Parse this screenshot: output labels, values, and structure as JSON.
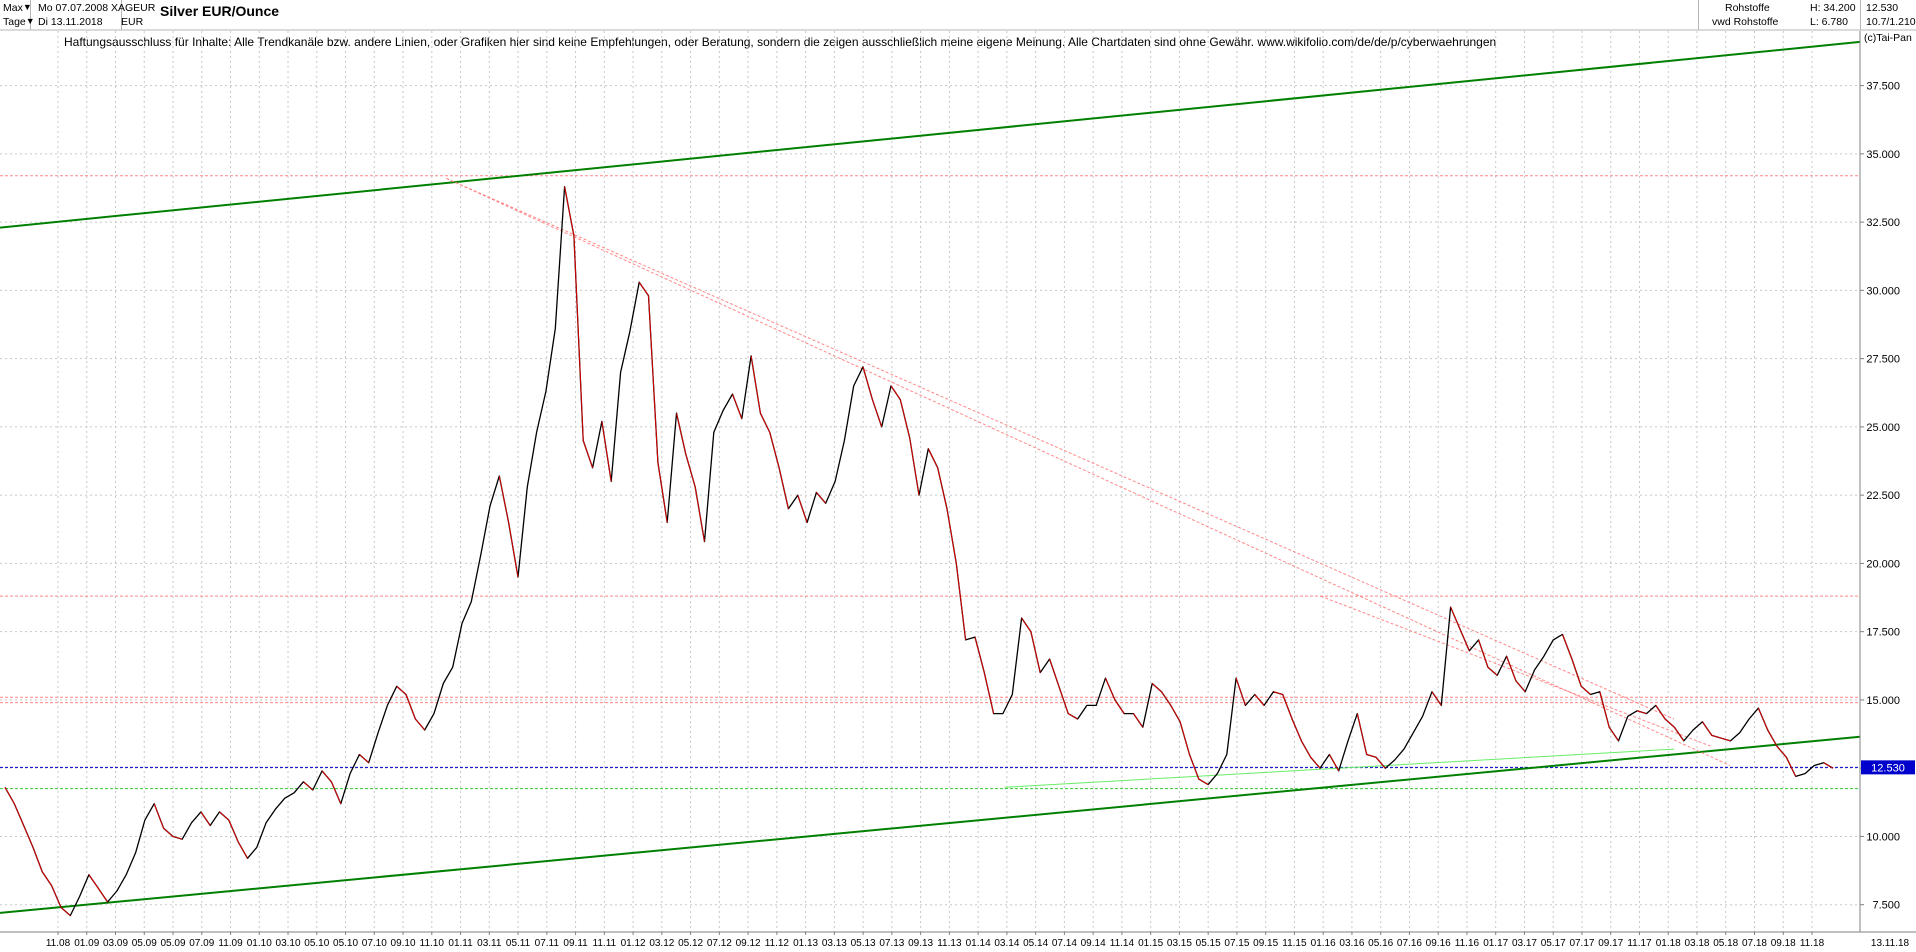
{
  "header": {
    "timeframe": "Max",
    "interval": "Tage",
    "start_date": "Mo 07.07.2008",
    "end_date": "Di 13.11.2018",
    "symbol": "XAGEUR",
    "currency": "EUR",
    "title": "Silver EUR/Ounce",
    "market": "Rohstoffe",
    "source": "vwd Rohstoffe",
    "high": "H: 34.200",
    "low": "L: 6.780",
    "last": "12.530",
    "ratio": "10.7/1.210",
    "credit": "(c)Tai-Pan",
    "disclaimer": "Haftungsausschluss für Inhalte: Alle Trendkanäle bzw. andere Linien, oder Grafiken hier sind keine Empfehlungen, oder Beratung, sondern die zeigen ausschließlich meine eigene Meinung. Alle Chartdaten sind ohne Gewähr.  www.wikifolio.com/de/de/p/cyberwaehrungen"
  },
  "chart_data": {
    "type": "line",
    "title": "Silver EUR/Ounce",
    "xlabel": "",
    "ylabel": "",
    "ylim": [
      6.5,
      39.5
    ],
    "y_ticks": [
      7.5,
      10.0,
      12.5,
      15.0,
      17.5,
      20.0,
      22.5,
      25.0,
      27.5,
      30.0,
      32.5,
      35.0,
      37.5
    ],
    "y_tick_labels": [
      "7.500",
      "10.000",
      "12.500",
      "15.000",
      "17.500",
      "20.000",
      "22.500",
      "25.000",
      "27.500",
      "30.000",
      "32.500",
      "35.000",
      "37.500"
    ],
    "x_tick_labels": [
      "11.08",
      "01.09",
      "03.09",
      "05.09",
      "05.09",
      "07.09",
      "11.09",
      "01.10",
      "03.10",
      "05.10",
      "05.10",
      "07.10",
      "09.10",
      "11.10",
      "01.11",
      "03.11",
      "05.11",
      "07.11",
      "09.11",
      "11.11",
      "01.12",
      "03.12",
      "05.12",
      "07.12",
      "09.12",
      "11.12",
      "01.13",
      "03.13",
      "05.13",
      "07.13",
      "09.13",
      "11.13",
      "01.14",
      "03.14",
      "05.14",
      "07.14",
      "09.14",
      "11.14",
      "01.15",
      "03.15",
      "05.15",
      "07.15",
      "09.15",
      "11.15",
      "01.16",
      "03.16",
      "05.16",
      "07.16",
      "09.16",
      "11.16",
      "01.17",
      "03.17",
      "05.17",
      "07.17",
      "09.17",
      "11.17",
      "01.18",
      "03.18",
      "05.18",
      "07.18",
      "09.18",
      "11.18"
    ],
    "x_last_label": "13.11.18",
    "grid": true,
    "last_value": 12.53,
    "last_value_label": "12.530",
    "series": [
      {
        "values": [
          11.8,
          11.2,
          10.4,
          9.6,
          8.7,
          8.2,
          7.4,
          7.1,
          7.8,
          8.6,
          8.1,
          7.6,
          8.0,
          8.6,
          9.4,
          10.6,
          11.2,
          10.3,
          10.0,
          9.9,
          10.5,
          10.9,
          10.4,
          10.9,
          10.6,
          9.8,
          9.2,
          9.6,
          10.5,
          11.0,
          11.4,
          11.6,
          12.0,
          11.7,
          12.4,
          12.0,
          11.2,
          12.3,
          13.0,
          12.7,
          13.8,
          14.8,
          15.5,
          15.2,
          14.3,
          13.9,
          14.5,
          15.6,
          16.2,
          17.8,
          18.6,
          20.3,
          22.1,
          23.2,
          21.5,
          19.5,
          22.8,
          24.8,
          26.3,
          28.6,
          33.8,
          32.0,
          24.5,
          23.5,
          25.2,
          23.0,
          27.0,
          28.5,
          30.3,
          29.8,
          23.7,
          21.5,
          25.5,
          24.0,
          22.8,
          20.8,
          24.8,
          25.6,
          26.2,
          25.3,
          27.6,
          25.5,
          24.8,
          23.5,
          22.0,
          22.5,
          21.5,
          22.6,
          22.2,
          23.0,
          24.5,
          26.5,
          27.2,
          26.0,
          25.0,
          26.5,
          26.0,
          24.6,
          22.5,
          24.2,
          23.5,
          22.0,
          20.0,
          17.2,
          17.3,
          16.0,
          14.5,
          14.5,
          15.2,
          18.0,
          17.5,
          16.0,
          16.5,
          15.5,
          14.5,
          14.3,
          14.8,
          14.8,
          15.8,
          15.0,
          14.5,
          14.5,
          14.0,
          15.6,
          15.3,
          14.8,
          14.2,
          13.0,
          12.1,
          11.9,
          12.3,
          13.0,
          15.8,
          14.8,
          15.2,
          14.8,
          15.3,
          15.2,
          14.3,
          13.5,
          12.9,
          12.5,
          13.0,
          12.4,
          13.5,
          14.5,
          13.0,
          12.9,
          12.5,
          12.8,
          13.2,
          13.8,
          14.4,
          15.3,
          14.8,
          18.4,
          17.6,
          16.8,
          17.2,
          16.2,
          15.9,
          16.6,
          15.7,
          15.3,
          16.1,
          16.6,
          17.2,
          17.4,
          16.5,
          15.5,
          15.2,
          15.3,
          14.0,
          13.5,
          14.4,
          14.6,
          14.5,
          14.8,
          14.3,
          14.0,
          13.5,
          13.9,
          14.2,
          13.7,
          13.6,
          13.5,
          13.8,
          14.3,
          14.7,
          13.9,
          13.3,
          12.9,
          12.2,
          12.3,
          12.6,
          12.7,
          12.5
        ]
      }
    ],
    "trendlines": [
      {
        "kind": "resistance",
        "color": "#008000",
        "from": [
          0,
          32.3
        ],
        "to": [
          1,
          39.1
        ]
      },
      {
        "kind": "support",
        "color": "#008000",
        "from": [
          0,
          7.2
        ],
        "to": [
          1,
          13.65
        ]
      },
      {
        "kind": "support-thin",
        "color": "#66ee66",
        "from": [
          0.54,
          11.8
        ],
        "to": [
          0.9,
          13.2
        ]
      },
      {
        "kind": "downtrend",
        "color": "#ff8888",
        "from": [
          0.24,
          34.1
        ],
        "to": [
          0.9,
          14.3
        ]
      },
      {
        "kind": "downtrend",
        "color": "#ff8888",
        "from": [
          0.24,
          34.1
        ],
        "to": [
          0.93,
          12.6
        ]
      },
      {
        "kind": "downtrend",
        "color": "#ff8888",
        "from": [
          0.71,
          18.8
        ],
        "to": [
          0.92,
          13.3
        ]
      }
    ],
    "horizontal_lines": [
      {
        "value": 34.2,
        "color": "#ff8888"
      },
      {
        "value": 18.8,
        "color": "#ff8888"
      },
      {
        "value": 15.1,
        "color": "#ff8888"
      },
      {
        "value": 14.9,
        "color": "#ff8888"
      },
      {
        "value": 12.53,
        "color": "#0000cc"
      },
      {
        "value": 11.75,
        "color": "#33cc33"
      }
    ]
  }
}
